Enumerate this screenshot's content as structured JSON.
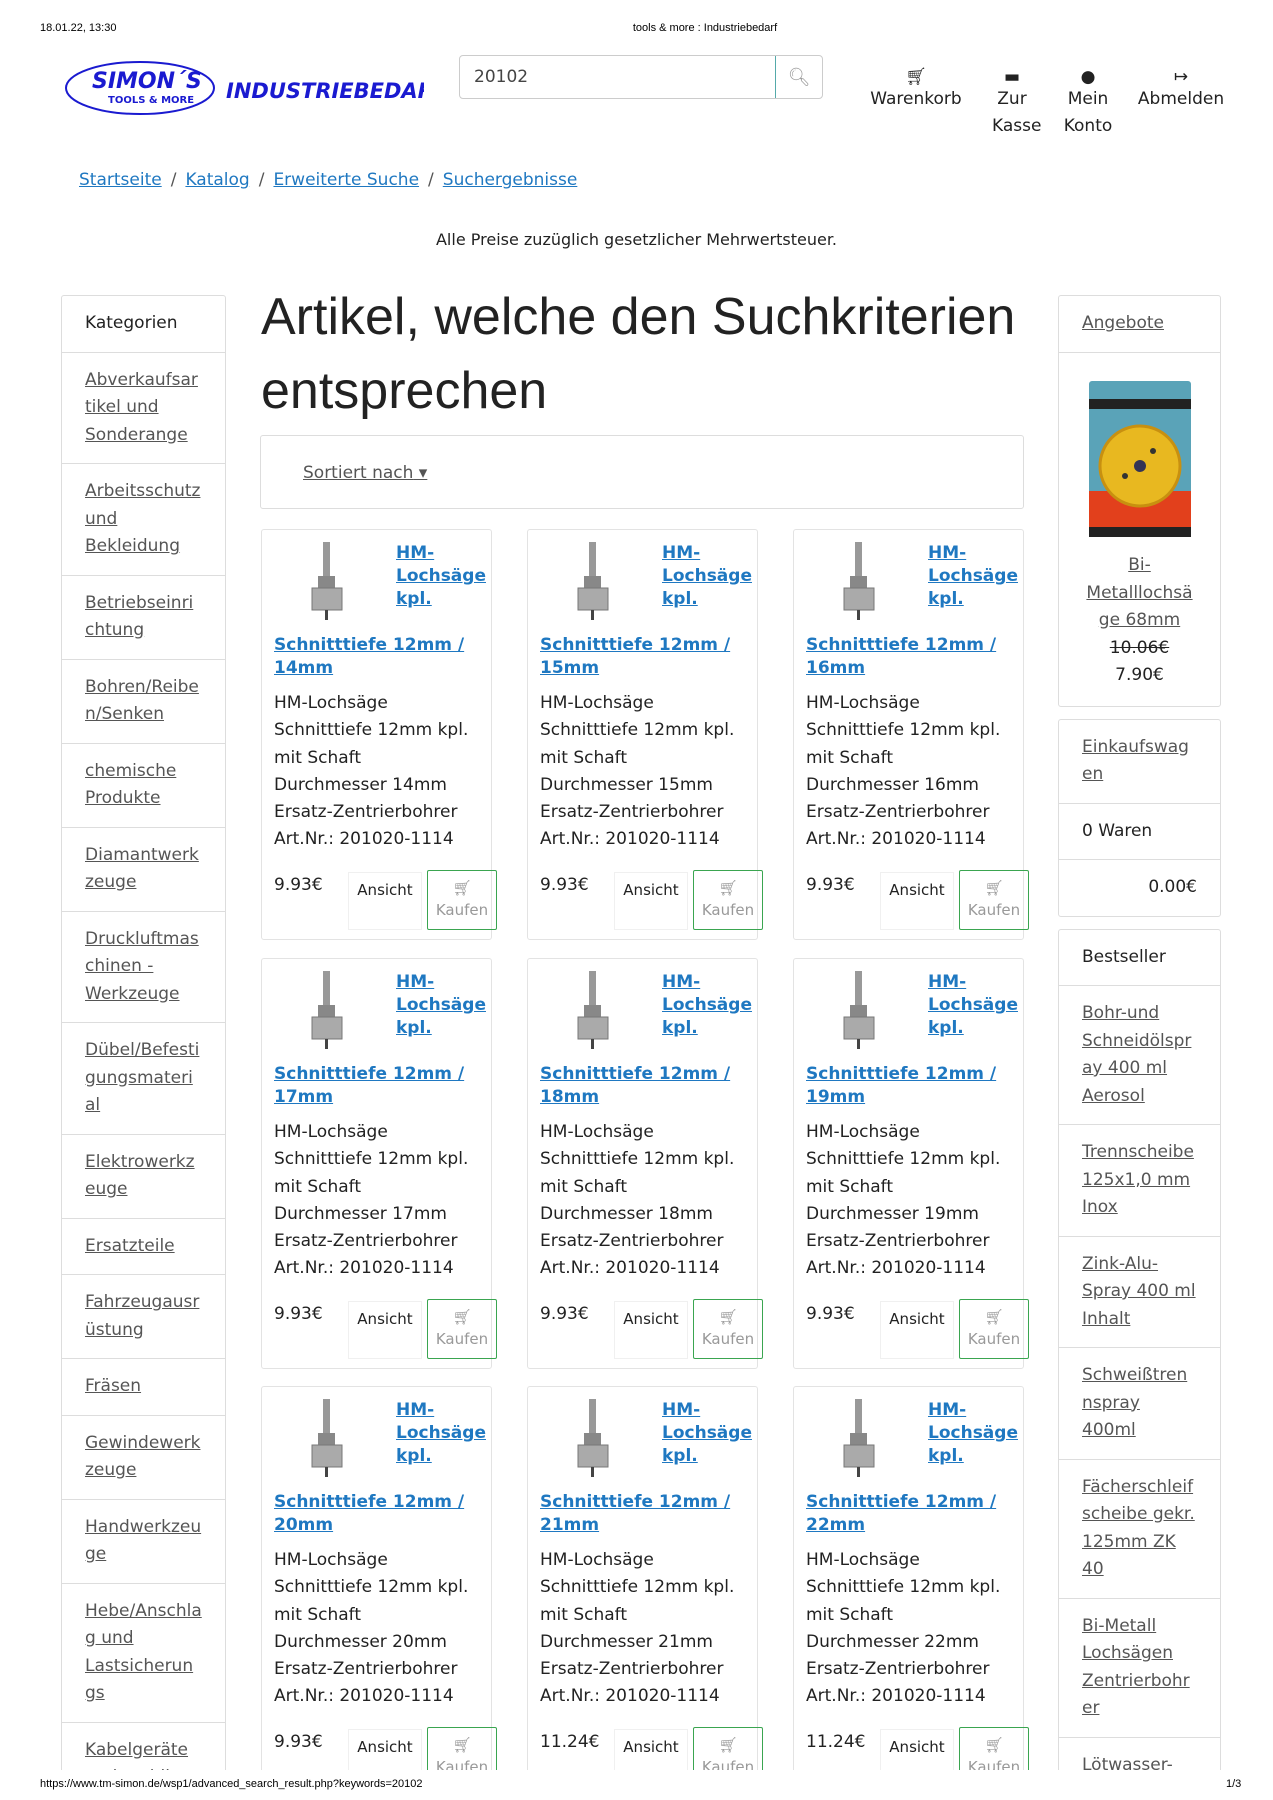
{
  "print_header": {
    "datetime": "18.01.22, 13:30",
    "title": "tools & more : Industriebedarf"
  },
  "print_footer": {
    "url": "https://www.tm-simon.de/wsp1/advanced_search_result.php?keywords=20102",
    "page": "1/3"
  },
  "logo": {
    "text": "SIMON´S",
    "sub": "TOOLS & MORE",
    "brand": "INDUSTRIEBEDARF"
  },
  "search": {
    "value": "20102",
    "icon": "search-icon"
  },
  "nav": [
    {
      "label": "Warenkorb",
      "icon": "cart-icon"
    },
    {
      "label": "Zur Kasse",
      "icon": "credit-card-icon"
    },
    {
      "label": "Mein Konto",
      "icon": "user-icon"
    },
    {
      "label": "Abmelden",
      "icon": "sign-out-icon"
    }
  ],
  "breadcrumb": [
    "Startseite",
    "Katalog",
    "Erweiterte Suche",
    "Suchergebnisse"
  ],
  "notice": "Alle Preise zuzüglich gesetzlicher Mehrwertsteuer.",
  "categories": {
    "title": "Kategorien",
    "items": [
      "Abverkaufsartikel und Sonderange",
      "Arbeitsschutz und Bekleidung",
      "Betriebseinrichtung",
      "Bohren/Reiben/Senken",
      "chemische Produkte",
      "Diamantwerkzeuge",
      "Druckluftmaschinen - Werkzeuge",
      "Dübel/Befestigungsmaterial",
      "Elektrowerkzeuge",
      "Ersatzteile",
      "Fahrzeugausrüstung",
      "Fräsen",
      "Gewindewerkzeuge",
      "Handwerkzeuge",
      "Hebe/Anschlag und Lastsicherungs",
      "Kabelgeräte und mobiles"
    ]
  },
  "main": {
    "heading": "Artikel, welche den Suchkriterien entsprechen",
    "sort_label": "Sortiert nach",
    "view_label": "Ansicht",
    "buy_label": "Kaufen",
    "products": [
      {
        "title": "HM-Lochsäge kpl.",
        "subtitle": "Schnitttiefe 12mm / 14mm",
        "desc": [
          "HM-Lochsäge",
          "Schnitttiefe 12mm kpl.",
          "mit Schaft",
          "Durchmesser 14mm",
          "Ersatz-Zentrierbohrer",
          "Art.Nr.: 201020-1114"
        ],
        "price": "9.93€"
      },
      {
        "title": "HM-Lochsäge kpl.",
        "subtitle": "Schnitttiefe 12mm / 15mm",
        "desc": [
          "HM-Lochsäge",
          "Schnitttiefe 12mm kpl.",
          "mit Schaft",
          "Durchmesser 15mm",
          "Ersatz-Zentrierbohrer",
          "Art.Nr.: 201020-1114"
        ],
        "price": "9.93€"
      },
      {
        "title": "HM-Lochsäge kpl.",
        "subtitle": "Schnitttiefe 12mm / 16mm",
        "desc": [
          "HM-Lochsäge",
          "Schnitttiefe 12mm kpl.",
          "mit Schaft",
          "Durchmesser 16mm",
          "Ersatz-Zentrierbohrer",
          "Art.Nr.: 201020-1114"
        ],
        "price": "9.93€"
      },
      {
        "title": "HM-Lochsäge kpl.",
        "subtitle": "Schnitttiefe 12mm / 17mm",
        "desc": [
          "HM-Lochsäge",
          "Schnitttiefe 12mm kpl.",
          "mit Schaft",
          "Durchmesser 17mm",
          "Ersatz-Zentrierbohrer",
          "Art.Nr.: 201020-1114"
        ],
        "price": "9.93€"
      },
      {
        "title": "HM-Lochsäge kpl.",
        "subtitle": "Schnitttiefe 12mm / 18mm",
        "desc": [
          "HM-Lochsäge",
          "Schnitttiefe 12mm kpl.",
          "mit Schaft",
          "Durchmesser 18mm",
          "Ersatz-Zentrierbohrer",
          "Art.Nr.: 201020-1114"
        ],
        "price": "9.93€"
      },
      {
        "title": "HM-Lochsäge kpl.",
        "subtitle": "Schnitttiefe 12mm / 19mm",
        "desc": [
          "HM-Lochsäge",
          "Schnitttiefe 12mm kpl.",
          "mit Schaft",
          "Durchmesser 19mm",
          "Ersatz-Zentrierbohrer",
          "Art.Nr.: 201020-1114"
        ],
        "price": "9.93€"
      },
      {
        "title": "HM-Lochsäge kpl.",
        "subtitle": "Schnitttiefe 12mm / 20mm",
        "desc": [
          "HM-Lochsäge",
          "Schnitttiefe 12mm kpl.",
          "mit Schaft",
          "Durchmesser 20mm",
          "Ersatz-Zentrierbohrer",
          "Art.Nr.: 201020-1114"
        ],
        "price": "9.93€"
      },
      {
        "title": "HM-Lochsäge kpl.",
        "subtitle": "Schnitttiefe 12mm / 21mm",
        "desc": [
          "HM-Lochsäge",
          "Schnitttiefe 12mm kpl.",
          "mit Schaft",
          "Durchmesser 21mm",
          "Ersatz-Zentrierbohrer",
          "Art.Nr.: 201020-1114"
        ],
        "price": "11.24€"
      },
      {
        "title": "HM-Lochsäge kpl.",
        "subtitle": "Schnitttiefe 12mm / 22mm",
        "desc": [
          "HM-Lochsäge",
          "Schnitttiefe 12mm kpl.",
          "mit Schaft",
          "Durchmesser 22mm",
          "Ersatz-Zentrierbohrer",
          "Art.Nr.: 201020-1114"
        ],
        "price": "11.24€"
      }
    ]
  },
  "offers": {
    "title": "Angebote",
    "product": "Bi-Metalllochsäge 68mm",
    "old_price": "10.06€",
    "price": "7.90€"
  },
  "cart": {
    "title": "Einkaufswagen",
    "count": "0 Waren",
    "total": "0.00€"
  },
  "bestseller": {
    "title": "Bestseller",
    "items": [
      "Bohr-und Schneidölspray 400 ml Aerosol",
      "Trennscheibe 125x1,0 mm Inox",
      "Zink-Alu-Spray 400 ml Inhalt",
      "Schweißtrennspray 400ml",
      "Fächerschleifscheibe gekr. 125mm ZK 40",
      "Bi-Metall Lochsägen Zentrierbohrer",
      "Lötwasser-Pinsel Länge"
    ]
  },
  "colors": {
    "link": "#1f78c1",
    "buy_border": "#3aa550",
    "logo": "#1a1ad0"
  }
}
